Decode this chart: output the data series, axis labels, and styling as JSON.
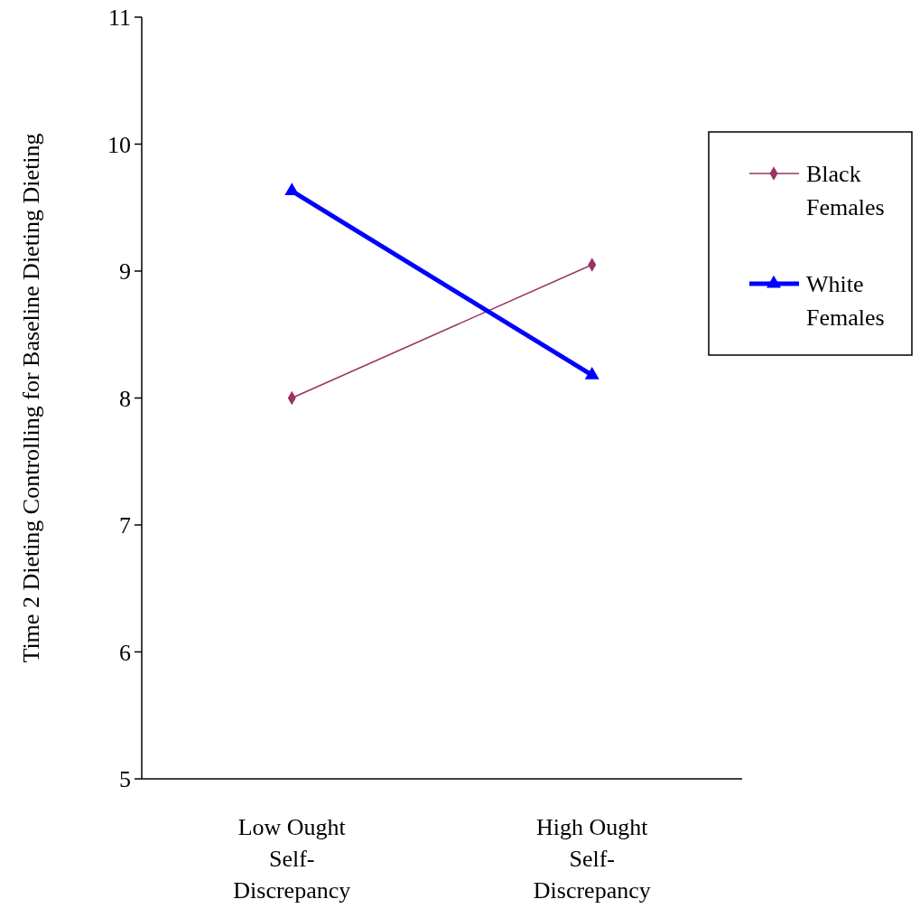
{
  "chart_data": {
    "type": "line",
    "ylabel": "Time 2 Dieting Controlling for Baseline Dieting Dieting",
    "categories": [
      "Low Ought\nSelf-\nDiscrepancy",
      "High Ought\nSelf-\nDiscrepancy"
    ],
    "series": [
      {
        "name": "Black\nFemales",
        "color": "#993366",
        "marker": "diamond",
        "values": [
          8.0,
          9.05
        ]
      },
      {
        "name": "White\nFemales",
        "color": "#0000ff",
        "marker": "triangle",
        "values": [
          9.63,
          8.18
        ]
      }
    ],
    "ylim": [
      5,
      11
    ],
    "yticks": [
      5,
      6,
      7,
      8,
      9,
      10,
      11
    ],
    "grid": false,
    "legend": "right"
  }
}
